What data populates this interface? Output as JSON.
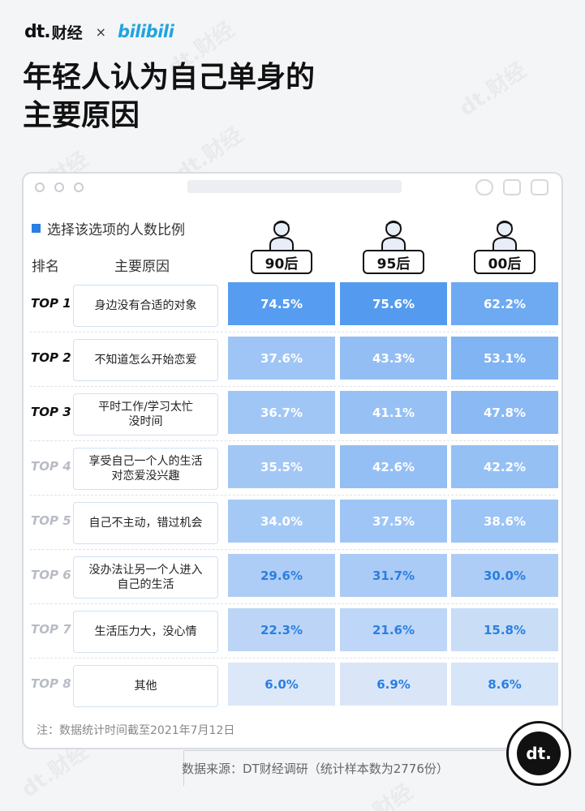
{
  "header": {
    "brand_dt": "dt.",
    "brand_dt_cn": "财经",
    "times": "×",
    "brand_bili": "bilibili",
    "title_line1": "年轻人认为自己单身的",
    "title_line2": "主要原因",
    "watermark": "dt.财经"
  },
  "legend": {
    "label": "选择该选项的人数比例",
    "color": "#2b7fe0"
  },
  "columns": {
    "rank_header": "排名",
    "reason_header": "主要原因"
  },
  "chart_data": {
    "type": "table",
    "title": "年轻人认为自己单身的主要原因",
    "legend": "选择该选项的人数比例",
    "columns": [
      "90后",
      "95后",
      "00后"
    ],
    "rows": [
      {
        "rank": "TOP 1",
        "reason": "身边没有合适的对象",
        "values": [
          "74.5%",
          "75.6%",
          "62.2%"
        ],
        "numeric": [
          74.5,
          75.6,
          62.2
        ]
      },
      {
        "rank": "TOP 2",
        "reason": "不知道怎么开始恋爱",
        "values": [
          "37.6%",
          "43.3%",
          "53.1%"
        ],
        "numeric": [
          37.6,
          43.3,
          53.1
        ]
      },
      {
        "rank": "TOP 3",
        "reason": "平时工作/学习太忙\n没时间",
        "values": [
          "36.7%",
          "41.1%",
          "47.8%"
        ],
        "numeric": [
          36.7,
          41.1,
          47.8
        ]
      },
      {
        "rank": "TOP 4",
        "reason": "享受自己一个人的生活\n对恋爱没兴趣",
        "values": [
          "35.5%",
          "42.6%",
          "42.2%"
        ],
        "numeric": [
          35.5,
          42.6,
          42.2
        ]
      },
      {
        "rank": "TOP 5",
        "reason": "自己不主动，错过机会",
        "values": [
          "34.0%",
          "37.5%",
          "38.6%"
        ],
        "numeric": [
          34.0,
          37.5,
          38.6
        ]
      },
      {
        "rank": "TOP 6",
        "reason": "没办法让另一个人进入\n自己的生活",
        "values": [
          "29.6%",
          "31.7%",
          "30.0%"
        ],
        "numeric": [
          29.6,
          31.7,
          30.0
        ]
      },
      {
        "rank": "TOP 7",
        "reason": "生活压力大，没心情",
        "values": [
          "22.3%",
          "21.6%",
          "15.8%"
        ],
        "numeric": [
          22.3,
          21.6,
          15.8
        ]
      },
      {
        "rank": "TOP 8",
        "reason": "其他",
        "values": [
          "6.0%",
          "6.9%",
          "8.6%"
        ],
        "numeric": [
          6.0,
          6.9,
          8.6
        ]
      }
    ],
    "rank_colors": {
      "top": "#111111",
      "rest": "#b8bcc4"
    }
  },
  "footer": {
    "note": "注：数据统计时间截至2021年7月12日",
    "source": "数据来源：DT财经调研（统计样本数为2776份）",
    "badge": "dt."
  }
}
